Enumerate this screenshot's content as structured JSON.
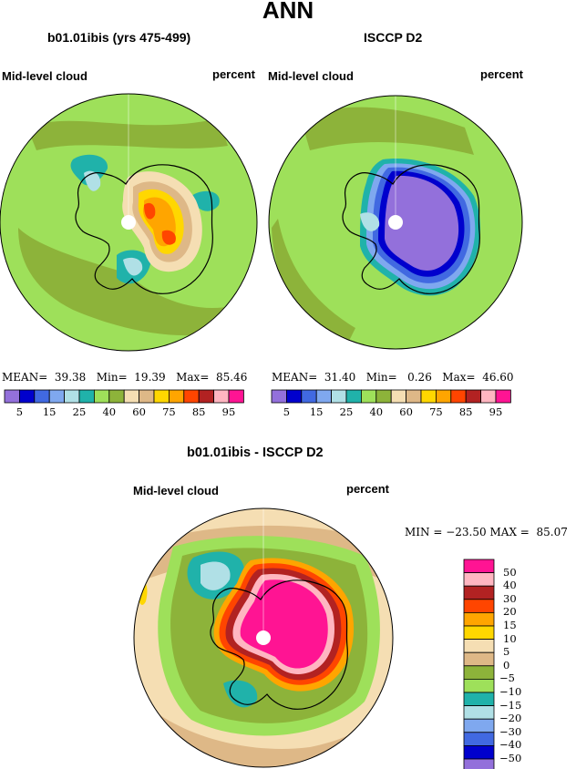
{
  "title": "ANN",
  "panels": [
    {
      "title": "b01.01ibis (yrs 475-499)",
      "variable": "Mid-level cloud",
      "units": "percent",
      "stats": {
        "mean_label": "MEAN=",
        "mean": "39.38",
        "min_label": "Min=",
        "min": "19.39",
        "max_label": "Max=",
        "max": "85.46"
      }
    },
    {
      "title": "ISCCP D2",
      "variable": "Mid-level cloud",
      "units": "percent",
      "stats": {
        "mean_label": "MEAN=",
        "mean": "31.40",
        "min_label": "Min=",
        "min": "0.26",
        "max_label": "Max=",
        "max": "46.60"
      }
    }
  ],
  "colorbar_top": {
    "colors": [
      "#9370db",
      "#0000cd",
      "#4169e1",
      "#7fa8ef",
      "#b0e0e6",
      "#20b2aa",
      "#9ee05a",
      "#8db33a",
      "#f5deb3",
      "#deb887",
      "#ffd700",
      "#ffa500",
      "#ff4500",
      "#b22222",
      "#ffb6c1",
      "#ff1493"
    ],
    "tick_labels": [
      "5",
      "15",
      "25",
      "40",
      "60",
      "75",
      "85",
      "95"
    ]
  },
  "difference": {
    "title": "b01.01ibis - ISCCP D2",
    "variable": "Mid-level cloud",
    "units": "percent",
    "min_label": "MIN =",
    "min": "−23.50",
    "max_label": "MAX =",
    "max": "85.07",
    "legend_colors": [
      "#ff1493",
      "#ffb6c1",
      "#b22222",
      "#ff4500",
      "#ffa500",
      "#ffd700",
      "#f5deb3",
      "#deb887",
      "#8db33a",
      "#9ee05a",
      "#20b2aa",
      "#b0e0e6",
      "#7fa8ef",
      "#4169e1",
      "#0000cd",
      "#9370db"
    ],
    "legend_labels": [
      "50",
      "40",
      "30",
      "20",
      "15",
      "10",
      "5",
      "0",
      "−5",
      "−10",
      "−15",
      "−20",
      "−30",
      "−40",
      "−50"
    ]
  }
}
